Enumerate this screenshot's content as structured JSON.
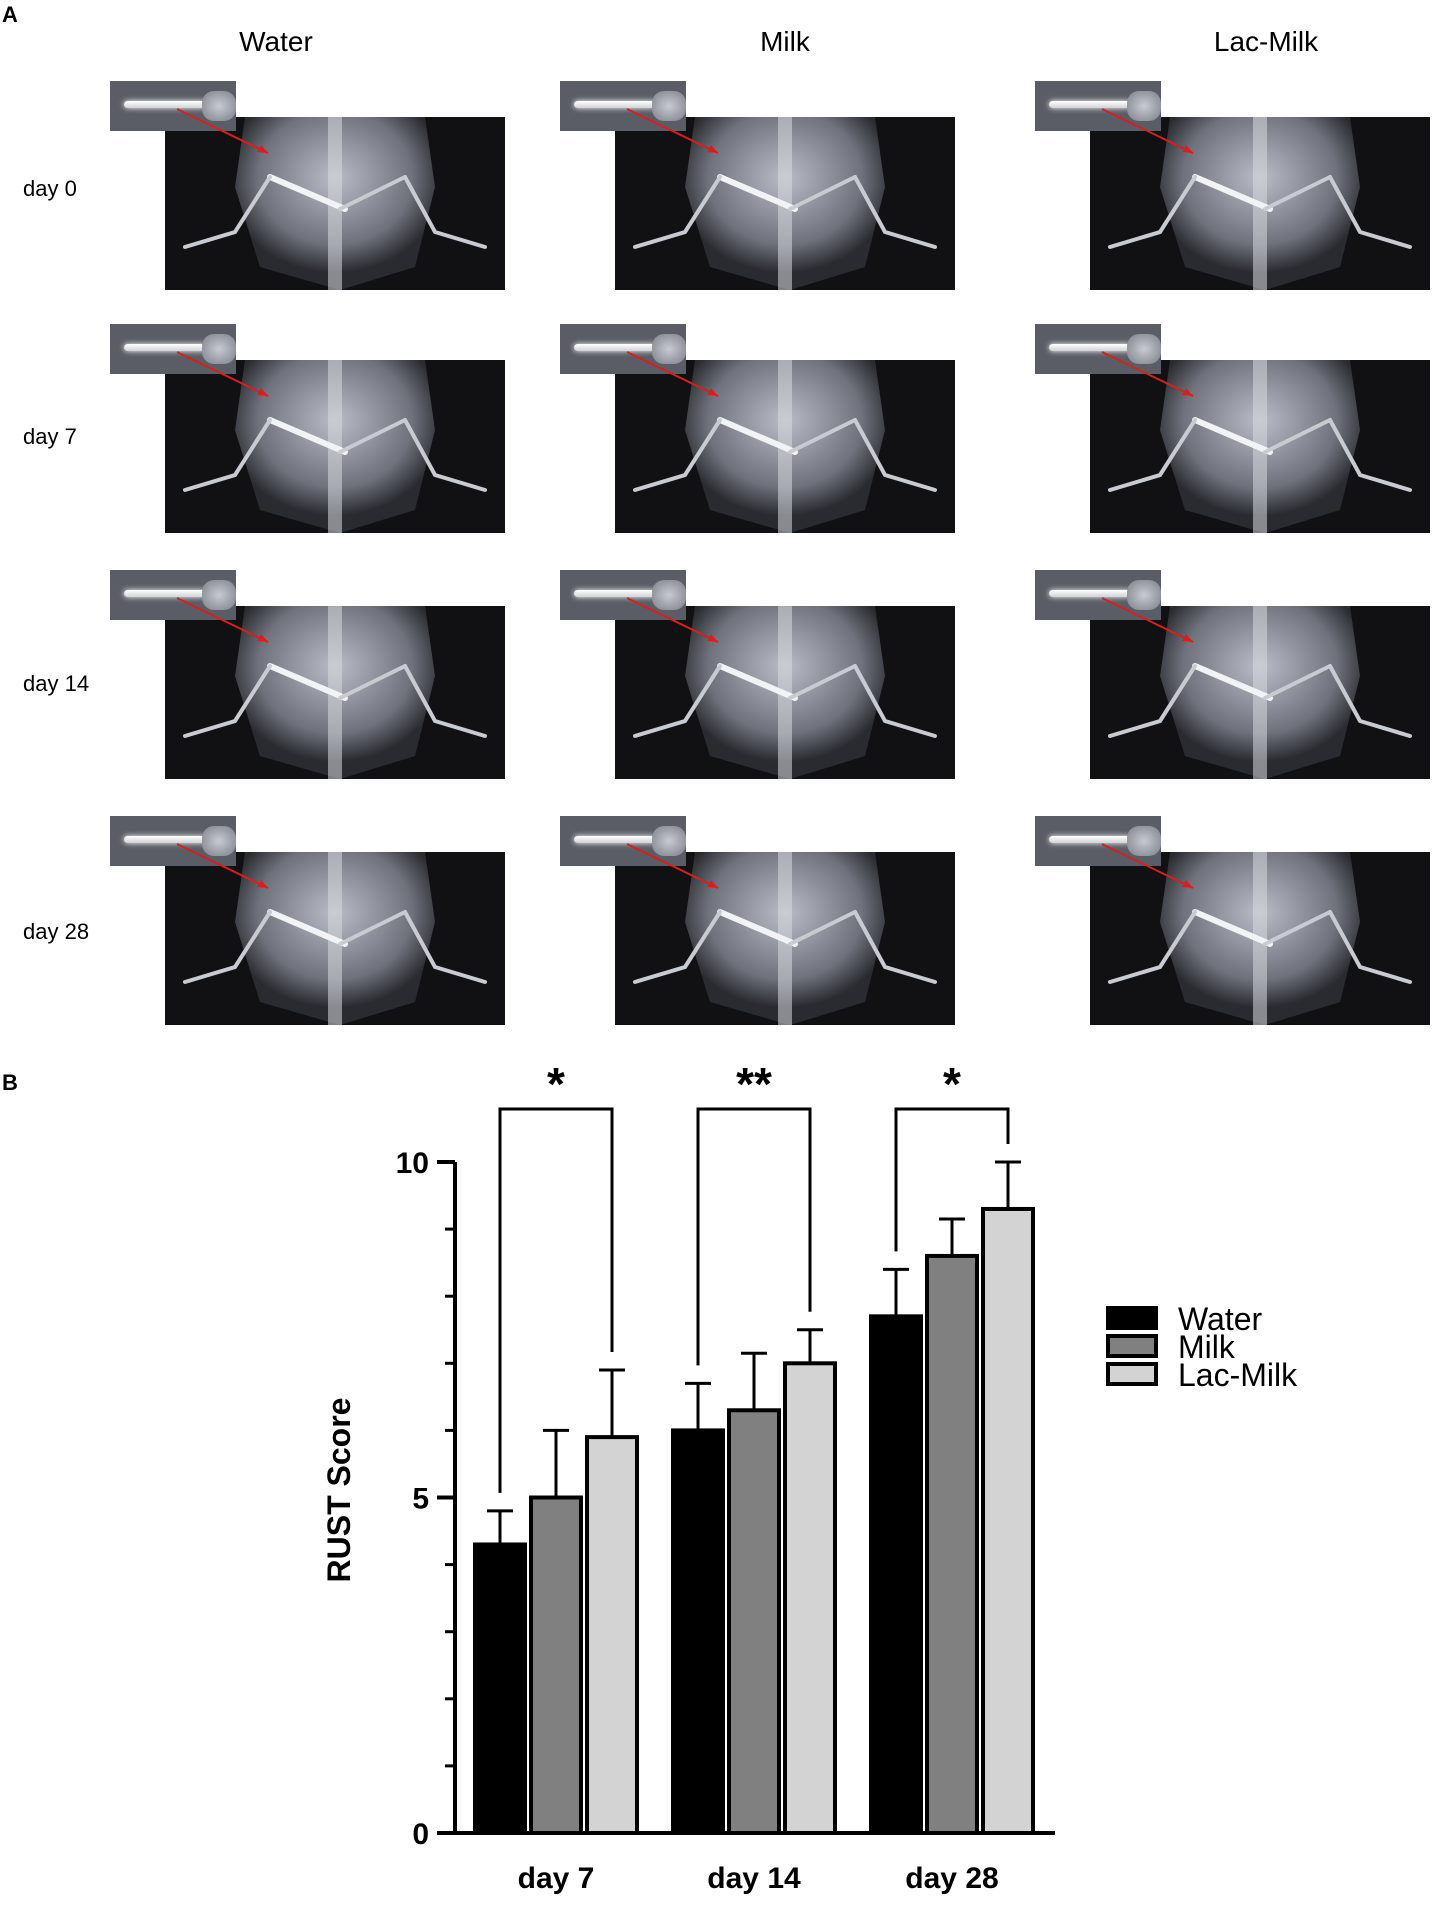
{
  "panel_a": {
    "label": "A",
    "columns": [
      "Water",
      "Milk",
      "Lac-Milk"
    ],
    "rows": [
      "day 0",
      "day 7",
      "day 14",
      "day 28"
    ]
  },
  "panel_b": {
    "label": "B"
  },
  "colors": {
    "water": "#000000",
    "milk": "#808080",
    "lac_milk": "#d3d3d3",
    "arrow": "#d81f1f"
  },
  "chart_data": {
    "type": "bar",
    "categories": [
      "day 7",
      "day 14",
      "day 28"
    ],
    "series": [
      {
        "name": "Water",
        "values": [
          4.3,
          6.0,
          7.7
        ],
        "errors": [
          0.5,
          0.7,
          0.7
        ]
      },
      {
        "name": "Milk",
        "values": [
          5.0,
          6.3,
          8.6
        ],
        "errors": [
          1.0,
          0.85,
          0.55
        ]
      },
      {
        "name": "Lac-Milk",
        "values": [
          5.9,
          7.0,
          9.3
        ],
        "errors": [
          1.0,
          0.5,
          0.7
        ]
      }
    ],
    "ylabel": "RUST Score",
    "xlabel": "",
    "ylim": [
      0,
      10
    ],
    "y_ticks": [
      0,
      5,
      10
    ],
    "y_minor_ticks": [
      1,
      2,
      3,
      4,
      6,
      7,
      8,
      9
    ],
    "legend_position": "right",
    "significance": [
      {
        "category": "day 7",
        "from": "Water",
        "to": "Lac-Milk",
        "label": "*"
      },
      {
        "category": "day 14",
        "from": "Water",
        "to": "Lac-Milk",
        "label": "**"
      },
      {
        "category": "day 28",
        "from": "Water",
        "to": "Lac-Milk",
        "label": "*"
      }
    ]
  }
}
